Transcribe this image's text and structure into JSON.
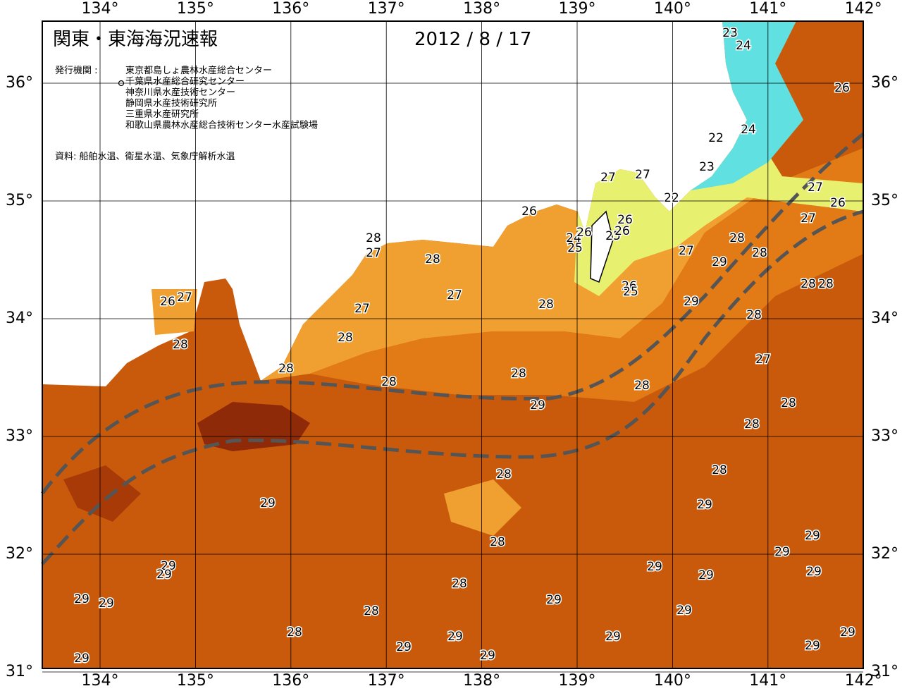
{
  "header": {
    "title": "関東・東海海況速報",
    "date": "2012 / 8 / 17"
  },
  "issuers": {
    "label": "発行機関 :",
    "agencies": [
      "東京都島しょ農林水産総合センター",
      "千葉県水産総合研究センター",
      "神奈川県水産技術センター",
      "静岡県水産技術研究所",
      "三重県水産研究所",
      "和歌山県農林水産総合技術センター水産試験場"
    ]
  },
  "source": "資料: 船舶水温、衛星水温、気象庁解析水温",
  "axes": {
    "lon_ticks": [
      {
        "value": 134,
        "label": "134°"
      },
      {
        "value": 135,
        "label": "135°"
      },
      {
        "value": 136,
        "label": "136°"
      },
      {
        "value": 137,
        "label": "137°"
      },
      {
        "value": 138,
        "label": "138°"
      },
      {
        "value": 139,
        "label": "139°"
      },
      {
        "value": 140,
        "label": "140°"
      },
      {
        "value": 141,
        "label": "141°"
      },
      {
        "value": 142,
        "label": "142°"
      }
    ],
    "lat_ticks": [
      {
        "value": 31,
        "label": "31°"
      },
      {
        "value": 32,
        "label": "32°"
      },
      {
        "value": 33,
        "label": "33°"
      },
      {
        "value": 34,
        "label": "34°"
      },
      {
        "value": 35,
        "label": "35°"
      },
      {
        "value": 36,
        "label": "36°"
      }
    ]
  },
  "isotherm_labels": [
    23,
    24,
    26,
    24,
    22,
    23,
    27,
    27,
    22,
    27,
    26,
    26,
    27,
    28,
    27,
    26,
    24,
    26,
    25,
    25,
    26,
    28,
    27,
    28,
    29,
    28,
    26,
    25,
    27,
    28,
    28,
    28,
    29,
    27,
    26,
    27,
    28,
    28,
    28,
    27,
    28,
    28,
    28,
    28,
    29,
    28,
    28,
    28,
    28,
    29,
    29,
    28,
    29,
    29,
    29,
    29,
    29,
    29,
    29,
    28,
    29,
    29,
    29,
    29,
    28,
    28,
    29,
    29,
    29,
    29,
    29,
    29,
    29
  ]
}
